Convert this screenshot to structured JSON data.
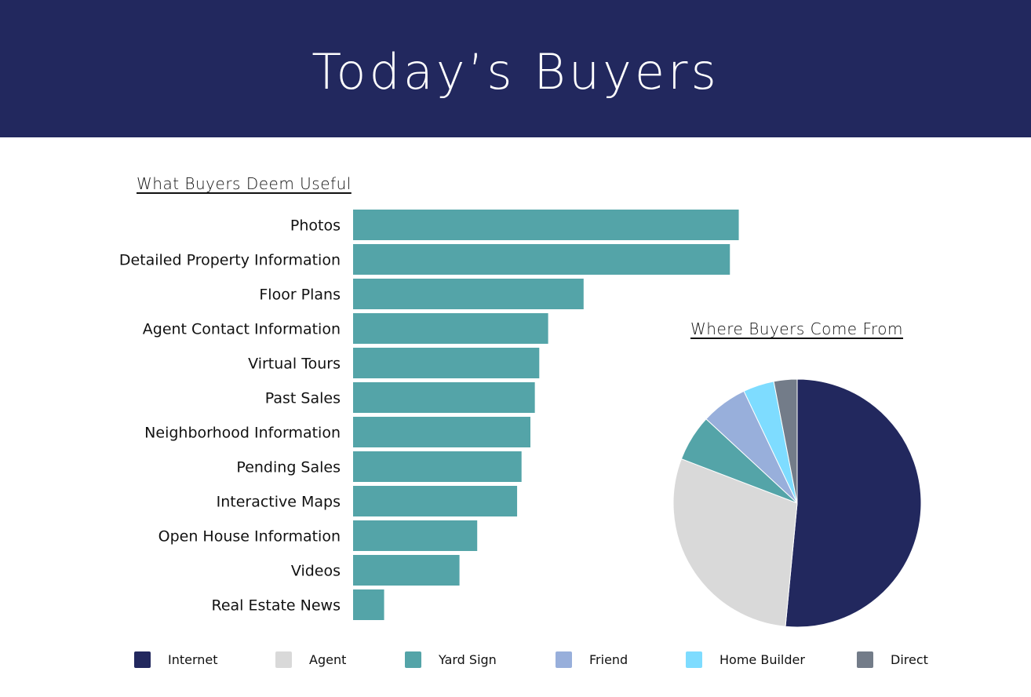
{
  "header": {
    "title": "Today’s Buyers"
  },
  "chart_data": [
    {
      "type": "bar",
      "orientation": "horizontal",
      "title": "What Buyers Deem Useful",
      "categories": [
        "Photos",
        "Detailed Property Information",
        "Floor Plans",
        "Agent Contact Information",
        "Virtual Tours",
        "Past Sales",
        "Neighborhood Information",
        "Pending Sales",
        "Interactive Maps",
        "Open House Information",
        "Videos",
        "Real Estate News"
      ],
      "values": [
        87,
        85,
        52,
        44,
        42,
        41,
        40,
        38,
        37,
        28,
        24,
        7
      ],
      "xlim": [
        0,
        100
      ],
      "grid": false,
      "color": "#54a4a8"
    },
    {
      "type": "pie",
      "title": "Where Buyers Come From",
      "labels": [
        "Internet",
        "Agent",
        "Yard Sign",
        "Friend",
        "Home Builder",
        "Direct"
      ],
      "values": [
        51,
        29,
        6,
        6,
        4,
        3
      ],
      "colors": [
        "#22285e",
        "#d9d9d9",
        "#54a4a8",
        "#98afdb",
        "#7edcff",
        "#737c89"
      ],
      "legend_position": "bottom"
    }
  ]
}
